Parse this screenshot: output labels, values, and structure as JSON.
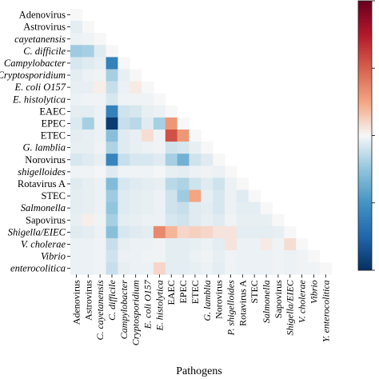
{
  "chart_data": {
    "type": "heatmap",
    "title": "",
    "xlabel": "Pathogens",
    "ylabel": "",
    "layout": "lower-triangle",
    "colormap": "RdBu_r (blue = negative, white = 0, red = positive)",
    "color_range": [
      -1,
      1
    ],
    "row_labels": [
      "Adenovirus",
      "Astrovirus",
      "cayetanensis",
      "C. difficile",
      "Campylobacter",
      "Cryptosporidium",
      "E. coli O157",
      "E. histolytica",
      "EAEC",
      "EPEC",
      "ETEC",
      "G. lamblia",
      "Norovirus",
      "shigelloides",
      "Rotavirus A",
      "STEC",
      "Salmonella",
      "Sapovirus",
      "Shigella/EIEC",
      "V. cholerae",
      "Vibrio",
      "enterocolitica"
    ],
    "row_italic": [
      false,
      false,
      true,
      true,
      true,
      true,
      true,
      true,
      false,
      false,
      false,
      true,
      false,
      true,
      false,
      false,
      true,
      false,
      true,
      true,
      true,
      true
    ],
    "col_labels": [
      "Adenovirus",
      "Astrovirus",
      "C. cayetanensis",
      "C. difficile",
      "Campylobacter",
      "Cryptosporidium",
      "E. coli O157",
      "E. histolytica",
      "EAEC",
      "EPEC",
      "ETEC",
      "G. lamblia",
      "Norovirus",
      "P. shigelloides",
      "Rotavirus A",
      "STEC",
      "Salmonella",
      "Sapovirus",
      "Shigella/EIEC",
      "V. cholerae",
      "Vibrio",
      "Y. enterocolitica"
    ],
    "col_italic": [
      false,
      false,
      true,
      true,
      true,
      true,
      true,
      true,
      false,
      false,
      false,
      true,
      false,
      true,
      false,
      false,
      true,
      false,
      true,
      true,
      true,
      true
    ],
    "values": [
      [
        0
      ],
      [
        -0.05,
        0
      ],
      [
        -0.03,
        -0.02,
        0
      ],
      [
        -0.22,
        -0.2,
        -0.06,
        0
      ],
      [
        -0.08,
        -0.06,
        -0.04,
        -0.6,
        0
      ],
      [
        -0.05,
        -0.03,
        -0.02,
        -0.2,
        -0.04,
        0
      ],
      [
        -0.04,
        -0.04,
        0.03,
        -0.12,
        -0.03,
        0.04,
        0
      ],
      [
        -0.03,
        -0.02,
        -0.02,
        -0.08,
        -0.02,
        -0.02,
        -0.02,
        0
      ],
      [
        -0.05,
        -0.05,
        -0.03,
        -0.6,
        -0.1,
        -0.08,
        -0.04,
        -0.03,
        0
      ],
      [
        -0.07,
        -0.2,
        -0.03,
        -0.95,
        -0.12,
        -0.15,
        -0.06,
        -0.2,
        0.3,
        0
      ],
      [
        -0.05,
        -0.04,
        -0.03,
        -0.28,
        -0.06,
        -0.04,
        0.08,
        -0.02,
        0.55,
        0.3,
        0
      ],
      [
        -0.04,
        -0.04,
        -0.02,
        -0.18,
        -0.06,
        -0.04,
        -0.03,
        -0.02,
        -0.1,
        -0.08,
        -0.04,
        0
      ],
      [
        -0.08,
        -0.06,
        -0.04,
        -0.58,
        -0.12,
        -0.08,
        -0.08,
        -0.06,
        -0.2,
        -0.35,
        -0.1,
        -0.06,
        0
      ],
      [
        -0.02,
        -0.02,
        -0.01,
        -0.06,
        -0.02,
        -0.02,
        -0.02,
        -0.01,
        -0.04,
        -0.05,
        -0.03,
        -0.02,
        -0.03,
        0
      ],
      [
        -0.06,
        -0.04,
        -0.03,
        -0.3,
        -0.08,
        -0.06,
        -0.05,
        -0.04,
        -0.15,
        -0.18,
        -0.1,
        -0.06,
        -0.1,
        -0.03,
        0
      ],
      [
        -0.05,
        -0.04,
        -0.03,
        -0.22,
        -0.06,
        -0.05,
        -0.04,
        -0.03,
        -0.1,
        -0.22,
        0.25,
        -0.04,
        -0.08,
        -0.03,
        -0.06,
        0
      ],
      [
        -0.05,
        -0.04,
        -0.03,
        -0.25,
        -0.06,
        -0.05,
        -0.04,
        -0.03,
        -0.1,
        -0.12,
        -0.06,
        -0.05,
        -0.08,
        -0.03,
        -0.05,
        -0.05,
        0
      ],
      [
        -0.04,
        0.03,
        -0.02,
        -0.2,
        -0.05,
        -0.04,
        -0.03,
        -0.03,
        -0.08,
        -0.1,
        -0.06,
        -0.04,
        -0.06,
        -0.02,
        -0.04,
        -0.04,
        -0.04,
        0
      ],
      [
        -0.06,
        -0.05,
        -0.03,
        -0.28,
        -0.08,
        -0.06,
        -0.05,
        0.35,
        0.2,
        0.1,
        0.12,
        0.1,
        0.06,
        0.06,
        -0.05,
        -0.05,
        -0.05,
        -0.04,
        0
      ],
      [
        -0.03,
        -0.03,
        -0.02,
        -0.12,
        -0.04,
        -0.03,
        -0.03,
        -0.02,
        -0.05,
        -0.05,
        -0.04,
        -0.03,
        -0.05,
        0.06,
        -0.03,
        -0.03,
        0.04,
        -0.02,
        0.08,
        0
      ],
      [
        -0.03,
        -0.03,
        -0.02,
        -0.1,
        -0.03,
        -0.03,
        -0.02,
        -0.02,
        -0.05,
        -0.05,
        -0.03,
        -0.02,
        -0.04,
        -0.02,
        -0.03,
        -0.03,
        -0.03,
        -0.02,
        -0.03,
        -0.02,
        0
      ],
      [
        -0.03,
        -0.03,
        -0.02,
        -0.12,
        -0.04,
        -0.03,
        -0.03,
        0.1,
        -0.05,
        -0.05,
        -0.04,
        -0.03,
        -0.05,
        -0.02,
        -0.03,
        -0.03,
        -0.03,
        -0.02,
        -0.03,
        -0.02,
        -0.02,
        0
      ]
    ]
  }
}
